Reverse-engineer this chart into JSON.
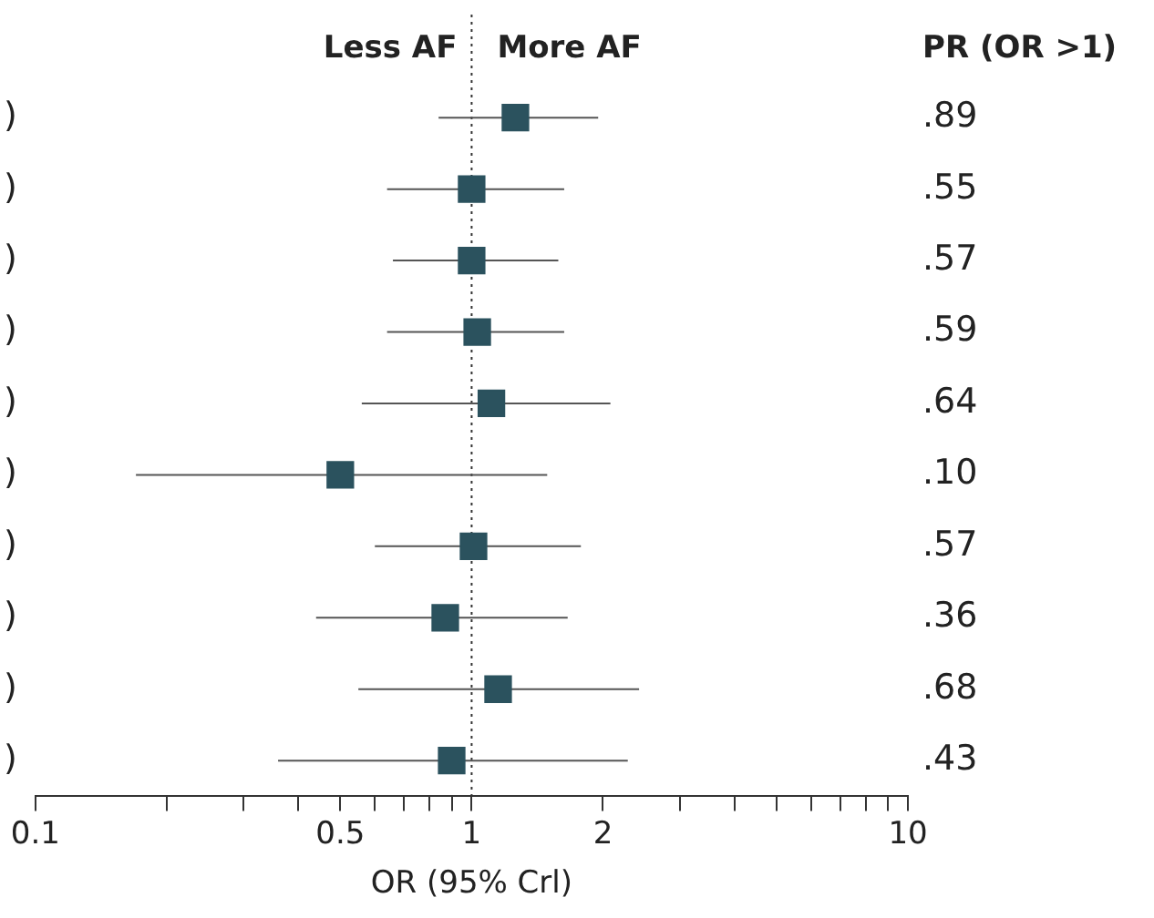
{
  "chart_data": {
    "type": "scatter",
    "orientation": "horizontal",
    "xlabel": "OR (95% Crl)",
    "categories": [
      ")",
      ")",
      ")",
      ")",
      ")",
      ")",
      ")",
      ")",
      ")",
      ")"
    ],
    "values": [
      1.26,
      1.0,
      1.0,
      1.03,
      1.11,
      0.5,
      1.01,
      0.87,
      1.15,
      0.9
    ],
    "errors": [
      [
        0.84,
        1.95
      ],
      [
        0.64,
        1.63
      ],
      [
        0.66,
        1.58
      ],
      [
        0.64,
        1.63
      ],
      [
        0.56,
        2.08
      ],
      [
        0.17,
        1.49
      ],
      [
        0.6,
        1.78
      ],
      [
        0.44,
        1.66
      ],
      [
        0.55,
        2.42
      ],
      [
        0.36,
        2.28
      ]
    ],
    "color": "#2b525e",
    "marker": "square",
    "log": "x",
    "xlim": [
      0.1,
      10
    ],
    "xticks": [
      0.1,
      {
        "value": 0.2,
        "label": null
      },
      {
        "value": 0.3,
        "label": null
      },
      {
        "value": 0.4,
        "label": null
      },
      0.5,
      {
        "value": 0.6,
        "label": null
      },
      {
        "value": 0.7,
        "label": null
      },
      {
        "value": 0.8,
        "label": null
      },
      {
        "value": 0.9,
        "label": null
      },
      1,
      2,
      {
        "value": 3,
        "label": null
      },
      {
        "value": 4,
        "label": null
      },
      {
        "value": 5,
        "label": null
      },
      {
        "value": 6,
        "label": null
      },
      {
        "value": 7,
        "label": null
      },
      {
        "value": 8,
        "label": null
      },
      {
        "value": 9,
        "label": null
      },
      10
    ],
    "ref_lines": [
      {
        "axis": "x",
        "value": 1,
        "line_style": "dotted",
        "color": "#333333"
      }
    ],
    "annotations": [
      "Less AF",
      "More AF",
      "PR (OR >1)",
      ".89",
      ".55",
      ".57",
      ".59",
      ".64",
      ".10",
      ".57",
      ".36",
      ".68",
      ".43"
    ],
    "grid": false,
    "legend": false
  }
}
